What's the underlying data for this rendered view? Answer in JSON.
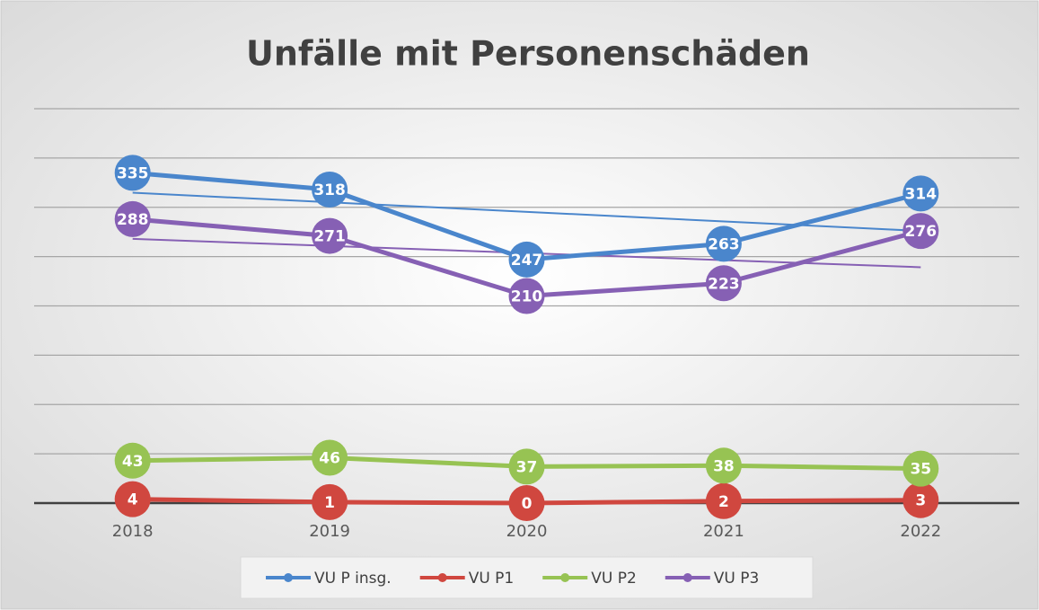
{
  "chart_data": {
    "type": "line",
    "title": "Unfälle mit Personenschäden",
    "categories": [
      "2018",
      "2019",
      "2020",
      "2021",
      "2022"
    ],
    "series": [
      {
        "name": "VU P insg.",
        "color": "#4a86cc",
        "values": [
          335,
          318,
          247,
          263,
          314
        ],
        "trendline": true
      },
      {
        "name": "VU P1",
        "color": "#d0473f",
        "values": [
          4,
          1,
          0,
          2,
          3
        ],
        "trendline": false
      },
      {
        "name": "VU P2",
        "color": "#97c353",
        "values": [
          43,
          46,
          37,
          38,
          35
        ],
        "trendline": false
      },
      {
        "name": "VU P3",
        "color": "#8660b4",
        "values": [
          288,
          271,
          210,
          223,
          276
        ],
        "trendline": true
      }
    ],
    "ylim": [
      0,
      400
    ],
    "yticks": [
      0,
      50,
      100,
      150,
      200,
      250,
      300,
      350,
      400
    ],
    "grid": true,
    "legend": "bottom"
  }
}
